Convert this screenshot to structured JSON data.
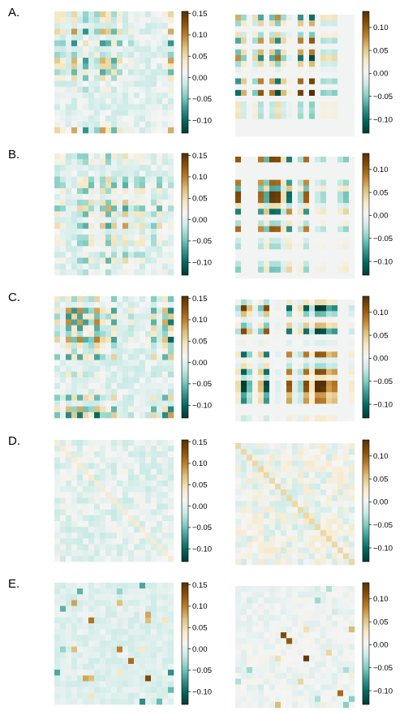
{
  "chart_data": {
    "type": "heatmap",
    "colormap": "BrBG",
    "grid": false,
    "panel_labels": [
      "A.",
      "B.",
      "C.",
      "D.",
      "E."
    ],
    "left_colorbar": {
      "ticks": [
        0.15,
        0.1,
        0.05,
        0.0,
        -0.05,
        -0.1
      ],
      "tick_labels": [
        "0.15",
        "0.10",
        "0.05",
        "0.00",
        "−0.05",
        "−0.10"
      ],
      "vmin": -0.13,
      "vmax": 0.155
    },
    "right_colorbar": {
      "ticks": [
        0.1,
        0.05,
        0.0,
        -0.05,
        -0.1
      ],
      "tick_labels": [
        "0.10",
        "0.05",
        "0.00",
        "−0.05",
        "−0.10"
      ],
      "vmin": -0.13,
      "vmax": 0.135
    },
    "panels": [
      {
        "label": "A.",
        "left": {
          "n": 21,
          "pattern": "stripes",
          "seed": 11,
          "strength": 0.13
        },
        "right": {
          "n": 21,
          "pattern": "blocks",
          "seed": 17,
          "strength": 0.13
        }
      },
      {
        "label": "B.",
        "left": {
          "n": 21,
          "pattern": "stripes",
          "seed": 23,
          "strength": 0.13
        },
        "right": {
          "n": 21,
          "pattern": "blocks",
          "seed": 29,
          "strength": 0.13
        }
      },
      {
        "label": "C.",
        "left": {
          "n": 21,
          "pattern": "stripes",
          "seed": 31,
          "strength": 0.12
        },
        "right": {
          "n": 21,
          "pattern": "blocks",
          "seed": 37,
          "strength": 0.12
        }
      },
      {
        "label": "D.",
        "left": {
          "n": 21,
          "pattern": "diagonal",
          "seed": 41,
          "strength": 0.04
        },
        "right": {
          "n": 21,
          "pattern": "diagonal",
          "seed": 43,
          "strength": 0.05
        }
      },
      {
        "label": "E.",
        "left": {
          "n": 21,
          "pattern": "sparse",
          "seed": 47,
          "strength": 0.14
        },
        "right": {
          "n": 21,
          "pattern": "sparse",
          "seed": 53,
          "strength": 0.13
        }
      }
    ]
  }
}
